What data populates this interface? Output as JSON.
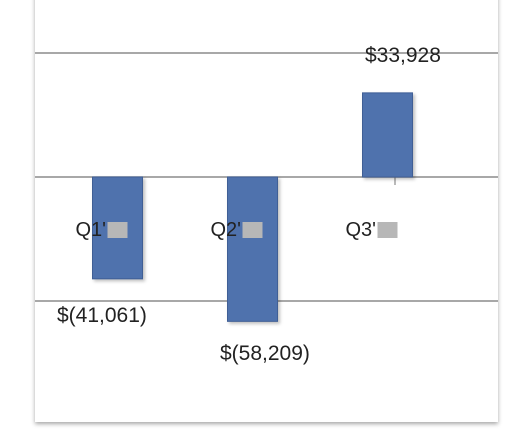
{
  "chart_data": {
    "type": "bar",
    "categories": [
      "Q1'",
      "Q2'",
      "Q3'"
    ],
    "values": [
      -41061,
      -58209,
      33928
    ],
    "data_labels": [
      "$(41,061)",
      "$(58,209)",
      "$33,928"
    ],
    "title": "",
    "xlabel": "",
    "ylabel": "",
    "ylim": [
      -75000,
      75000
    ],
    "grid": true,
    "legend": "none",
    "colors": {
      "bar": "#4f72ad",
      "bar_edge": "#3f5f95",
      "gridline": "#8c8c8c",
      "axis": "#8c8c8c",
      "text": "#222222",
      "redaction": "#b7b7b7"
    }
  }
}
